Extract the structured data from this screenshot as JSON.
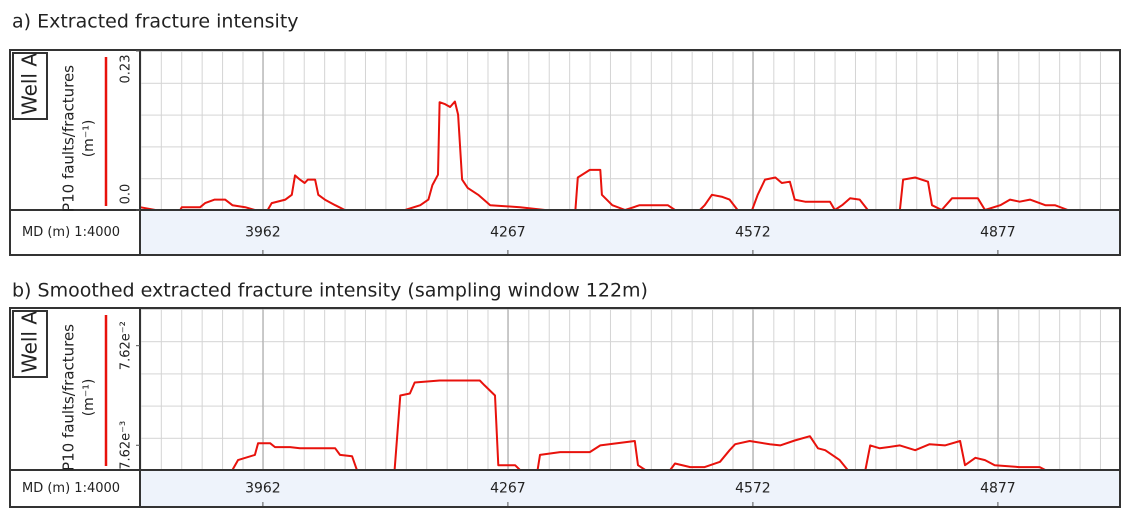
{
  "chart_data": [
    {
      "type": "line",
      "title": "a) Extracted fracture intensity",
      "track_label": "Well A",
      "ylabel": [
        "P10 faults/fractures",
        "(m⁻¹)"
      ],
      "xlabel": "MD (m) 1:4000",
      "xlim": [
        3809,
        5029
      ],
      "xticks": [
        3962,
        4267,
        4572,
        4877
      ],
      "ylim": [
        0,
        0.23
      ],
      "yticks": [
        {
          "value": 0,
          "label": "0.0"
        },
        0.23
      ],
      "log": false,
      "grid": true,
      "color": "#e8120c",
      "x": [
        3809,
        3828,
        3859,
        3861,
        3884,
        3890,
        3902,
        3915,
        3924,
        3940,
        3952,
        3968,
        3973,
        3990,
        3998,
        4002,
        4008,
        4014,
        4018,
        4027,
        4031,
        4039,
        4052,
        4064,
        4108,
        4139,
        4158,
        4168,
        4173,
        4180,
        4182,
        4189,
        4195,
        4201,
        4205,
        4210,
        4217,
        4230,
        4245,
        4282,
        4313,
        4351,
        4354,
        4369,
        4382,
        4384,
        4397,
        4413,
        4431,
        4466,
        4475,
        4506,
        4512,
        4521,
        4534,
        4543,
        4553,
        4571,
        4578,
        4587,
        4600,
        4608,
        4618,
        4624,
        4637,
        4668,
        4674,
        4683,
        4693,
        4705,
        4715,
        4755,
        4759,
        4774,
        4790,
        4795,
        4807,
        4820,
        4852,
        4861,
        4880,
        4892,
        4904,
        4917,
        4936,
        4948,
        4964
      ],
      "values": [
        0.004,
        0,
        0,
        0.004,
        0.004,
        0.01,
        0.015,
        0.015,
        0.007,
        0.004,
        0,
        0,
        0.01,
        0.015,
        0.022,
        0.05,
        0.044,
        0.039,
        0.044,
        0.044,
        0.022,
        0.015,
        0.007,
        0,
        0,
        0,
        0.007,
        0.015,
        0.036,
        0.051,
        0.156,
        0.153,
        0.149,
        0.157,
        0.138,
        0.044,
        0.032,
        0.022,
        0.007,
        0.004,
        0,
        0,
        0.047,
        0.058,
        0.058,
        0.022,
        0.007,
        0,
        0.007,
        0.007,
        0,
        0,
        0.007,
        0.022,
        0.019,
        0.015,
        0,
        0,
        0.022,
        0.044,
        0.047,
        0.039,
        0.041,
        0.015,
        0.012,
        0.012,
        0,
        0.007,
        0.017,
        0.015,
        0,
        0,
        0.044,
        0.047,
        0.041,
        0.007,
        0,
        0.017,
        0.017,
        0,
        0.007,
        0.015,
        0.012,
        0.015,
        0.007,
        0.007,
        0
      ]
    },
    {
      "type": "line",
      "title": "b) Smoothed extracted fracture intensity (sampling window 122m)",
      "track_label": "Well A",
      "ylabel": [
        "P10 faults/fractures",
        "(m⁻¹)"
      ],
      "xlabel": "MD (m) 1:4000",
      "xlim": [
        3809,
        5029
      ],
      "xticks": [
        3962,
        4267,
        4572,
        4877
      ],
      "ylim": [
        0.0043,
        0.178
      ],
      "yticks": [
        {
          "value": 0.00762,
          "label": "7.62e⁻³"
        },
        {
          "value": 0.0762,
          "label": "7.62e⁻²"
        }
      ],
      "log": true,
      "grid": true,
      "color": "#e8120c",
      "x": [
        3859,
        3924,
        3931,
        3952,
        3956,
        3971,
        3977,
        3996,
        4008,
        4052,
        4058,
        4073,
        4079,
        4126,
        4133,
        4145,
        4151,
        4182,
        4232,
        4238,
        4251,
        4255,
        4276,
        4282,
        4304,
        4307,
        4332,
        4369,
        4382,
        4425,
        4429,
        4438,
        4469,
        4475,
        4494,
        4512,
        4531,
        4543,
        4550,
        4568,
        4593,
        4606,
        4624,
        4643,
        4653,
        4662,
        4680,
        4690,
        4712,
        4718,
        4730,
        4755,
        4774,
        4792,
        4811,
        4830,
        4836,
        4849,
        4861,
        4873,
        4904,
        4929,
        4936
      ],
      "values": [
        0.0043,
        0.0043,
        0.0054,
        0.0061,
        0.008,
        0.008,
        0.0073,
        0.0073,
        0.0071,
        0.0071,
        0.0061,
        0.0059,
        0.0043,
        0.0043,
        0.0241,
        0.0252,
        0.0325,
        0.0341,
        0.0341,
        0.0304,
        0.0241,
        0.0048,
        0.0048,
        0.0043,
        0.0043,
        0.0061,
        0.0065,
        0.0065,
        0.0076,
        0.0084,
        0.0048,
        0.0043,
        0.0043,
        0.005,
        0.0046,
        0.0046,
        0.0052,
        0.0068,
        0.0078,
        0.0084,
        0.0078,
        0.0076,
        0.0085,
        0.0094,
        0.0071,
        0.0068,
        0.0054,
        0.0043,
        0.0043,
        0.0076,
        0.0071,
        0.0076,
        0.0068,
        0.0078,
        0.0076,
        0.0084,
        0.0048,
        0.0057,
        0.0054,
        0.0048,
        0.0046,
        0.0046,
        0.0043
      ]
    }
  ]
}
